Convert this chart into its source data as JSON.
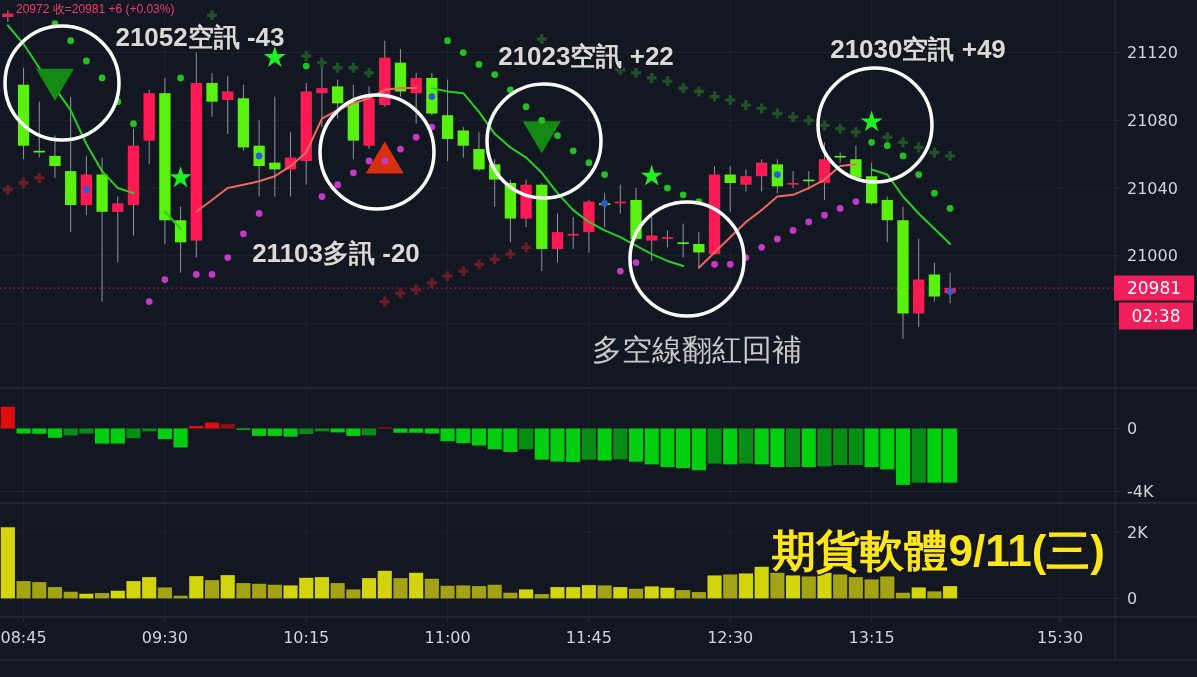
{
  "chart_data": [
    {
      "type": "candlestick",
      "categories": [
        null,
        null,
        null,
        null,
        null,
        null,
        null,
        null,
        null,
        null,
        null,
        null,
        null,
        null,
        null,
        null,
        null,
        null,
        null,
        null,
        null,
        null,
        null,
        null,
        null,
        null,
        null,
        null,
        null,
        null,
        null,
        null,
        null,
        null,
        null,
        null,
        null,
        null,
        null,
        null,
        null,
        null,
        null,
        null,
        null,
        null,
        null,
        null,
        null,
        null,
        null,
        null,
        null,
        null,
        null,
        null,
        null,
        null,
        null,
        null,
        null,
        null,
        null,
        null,
        null,
        null,
        null,
        null,
        null,
        null,
        null
      ],
      "ohlc": [
        [
          21141,
          21145,
          21138,
          21143
        ],
        [
          21101,
          21111,
          21057,
          21065
        ],
        [
          21062,
          21091,
          21058,
          21061
        ],
        [
          21059,
          21071,
          21046,
          21053
        ],
        [
          21050,
          21094,
          21014,
          21030
        ],
        [
          21030,
          21059,
          21024,
          21048
        ],
        [
          21048,
          21058,
          20973,
          21026
        ],
        [
          21026,
          21035,
          20996,
          21031
        ],
        [
          21030,
          21075,
          21012,
          21065
        ],
        [
          21068,
          21098,
          21054,
          21096
        ],
        [
          21096,
          21105,
          21007,
          21021
        ],
        [
          21021,
          21029,
          20990,
          21008
        ],
        [
          21009,
          21120,
          20999,
          21102
        ],
        [
          21102,
          21108,
          21082,
          21091
        ],
        [
          21092,
          21106,
          21072,
          21097
        ],
        [
          21093,
          21101,
          21062,
          21064
        ],
        [
          21065,
          21080,
          21035,
          21053
        ],
        [
          21055,
          21094,
          21035,
          21051
        ],
        [
          21051,
          21073,
          21035,
          21058
        ],
        [
          21056,
          21102,
          21042,
          21097
        ],
        [
          21096,
          21112,
          21076,
          21099
        ],
        [
          21100,
          21104,
          21081,
          21090
        ],
        [
          21091,
          21101,
          21057,
          21068
        ],
        [
          21065,
          21100,
          21063,
          21093
        ],
        [
          21089,
          21127,
          21088,
          21117
        ],
        [
          21114,
          21122,
          21094,
          21097
        ],
        [
          21096,
          21108,
          21078,
          21105
        ],
        [
          21105,
          21108,
          21083,
          21084
        ],
        [
          21083,
          21104,
          21056,
          21069
        ],
        [
          21074,
          21076,
          21058,
          21065
        ],
        [
          21063,
          21073,
          21050,
          21051
        ],
        [
          21054,
          21057,
          21029,
          21045
        ],
        [
          21043,
          21045,
          21008,
          21022
        ],
        [
          21022,
          21045,
          21017,
          21042
        ],
        [
          21042,
          21043,
          20991,
          21004
        ],
        [
          21004,
          21025,
          20996,
          21014
        ],
        [
          21012,
          21023,
          21004,
          21013
        ],
        [
          21014,
          21033,
          21002,
          21032
        ],
        [
          21031,
          21037,
          21017,
          21030
        ],
        [
          21031,
          21042,
          21025,
          21032
        ],
        [
          21033,
          21040,
          21009,
          21010
        ],
        [
          21009,
          21023,
          20997,
          21012
        ],
        [
          21010,
          21015,
          21005,
          21011
        ],
        [
          21008,
          21019,
          20999,
          21007
        ],
        [
          21007,
          21014,
          20993,
          21002
        ],
        [
          21001,
          21053,
          21001,
          21048
        ],
        [
          21048,
          21053,
          21026,
          21043
        ],
        [
          21042,
          21051,
          21038,
          21047
        ],
        [
          21047,
          21057,
          21038,
          21055
        ],
        [
          21054,
          21057,
          21037,
          21041
        ],
        [
          21042,
          21050,
          21040,
          21043
        ],
        [
          21045,
          21050,
          21039,
          21044
        ],
        [
          21043,
          21067,
          21033,
          21057
        ],
        [
          21059,
          21061,
          21055,
          21058
        ],
        [
          21057,
          21065,
          21046,
          21046
        ],
        [
          21047,
          21055,
          21030,
          21031
        ],
        [
          21033,
          21035,
          21008,
          21021
        ],
        [
          21021,
          21029,
          20951,
          20966
        ],
        [
          20966,
          21010,
          20958,
          20986
        ],
        [
          20989,
          20996,
          20973,
          20976
        ],
        [
          20978,
          20990,
          20972,
          20981
        ],
        null,
        null,
        null,
        null,
        null,
        null,
        null,
        null,
        null,
        null
      ],
      "colors": [
        "#ff1a53",
        "#59f20f",
        "#59f20f",
        "#59f20f",
        "#59f20f",
        "#ff1a53",
        "#59f20f",
        "#ff1a53",
        "#ff1a53",
        "#ff1a53",
        "#59f20f",
        "#59f20f",
        "#ff1a53",
        "#59f20f",
        "#ff1a53",
        "#59f20f",
        "#59f20f",
        "#59f20f",
        "#ff1a53",
        "#ff1a53",
        "#ff1a53",
        "#59f20f",
        "#59f20f",
        "#ff1a53",
        "#ff1a53",
        "#59f20f",
        "#ff1a53",
        "#59f20f",
        "#59f20f",
        "#59f20f",
        "#59f20f",
        "#59f20f",
        "#59f20f",
        "#ff1a53",
        "#59f20f",
        "#ff1a53",
        "#ff1a53",
        "#ff1a53",
        "#59f20f",
        "#ff1a53",
        "#59f20f",
        "#ff1a53",
        "#ff1a53",
        "#59f20f",
        "#59f20f",
        "#ff1a53",
        "#59f20f",
        "#ff1a53",
        "#ff1a53",
        "#59f20f",
        "#ff1a53",
        "#59f20f",
        "#ff1a53",
        "#59f20f",
        "#59f20f",
        "#59f20f",
        "#59f20f",
        "#59f20f",
        "#ff1a53",
        "#59f20f",
        "#ff1a53",
        null,
        null,
        null,
        null,
        null,
        null,
        null,
        null,
        null,
        null
      ],
      "series": [
        {
          "type": "line",
          "color": "#25cf25",
          "values": [
            21136,
            21125,
            21111,
            21099,
            21086,
            21066,
            21050,
            21040,
            21037,
            null,
            21026,
            21016,
            null,
            null,
            null,
            null,
            null,
            null,
            null,
            null,
            null,
            null,
            null,
            null,
            null,
            null,
            null,
            21099,
            21097,
            21096,
            21085,
            21072,
            21064,
            21058,
            21049,
            21037,
            21027,
            21020,
            21015,
            21011,
            21006,
            21001,
            20997,
            20994,
            null,
            null,
            null,
            null,
            null,
            null,
            null,
            null,
            null,
            null,
            null,
            21051,
            21048,
            21035,
            21025,
            21016,
            21007,
            null,
            null,
            null,
            null,
            null,
            null,
            null,
            null,
            null,
            null
          ]
        },
        {
          "type": "line",
          "color": "#ec6a5e",
          "values": [
            null,
            null,
            null,
            null,
            null,
            null,
            null,
            null,
            null,
            null,
            null,
            null,
            21026,
            21033,
            21040,
            21042,
            21044,
            21047,
            21053,
            21061,
            21081,
            21086,
            21090,
            21093,
            21098,
            21099,
            21099,
            null,
            null,
            null,
            null,
            null,
            null,
            null,
            null,
            null,
            null,
            null,
            null,
            null,
            null,
            null,
            null,
            null,
            20993,
            21002,
            21011,
            21020,
            21027,
            21035,
            21036,
            21040,
            21045,
            21053,
            21054,
            null,
            null,
            null,
            null,
            null,
            null,
            null,
            null,
            null,
            null,
            null,
            null,
            null,
            null,
            null,
            null
          ]
        },
        {
          "type": "scatter",
          "marker": "cross",
          "color": "#1f5226",
          "values": [
            null,
            null,
            null,
            null,
            null,
            null,
            null,
            null,
            null,
            null,
            null,
            null,
            null,
            21142,
            null,
            null,
            null,
            null,
            null,
            21118,
            21114,
            21111,
            21111,
            21108,
            null,
            null,
            null,
            null,
            null,
            null,
            null,
            null,
            null,
            null,
            21128,
            null,
            null,
            null,
            null,
            21110,
            21108,
            21105,
            21103,
            21099,
            21097,
            21094,
            21092,
            21089,
            21087,
            21084,
            21082,
            21080,
            21077,
            21075,
            21073,
            null,
            21070,
            21067,
            21064,
            21061,
            21059,
            null,
            null,
            null,
            null,
            null,
            null,
            null,
            null,
            null,
            null
          ]
        },
        {
          "type": "scatter",
          "marker": "cross",
          "color": "#6b1d27",
          "values": [
            21039,
            21043,
            21046,
            null,
            null,
            null,
            null,
            null,
            null,
            null,
            null,
            null,
            null,
            null,
            null,
            null,
            null,
            null,
            null,
            null,
            null,
            null,
            null,
            null,
            20973,
            20978,
            20980,
            20984,
            20988,
            20991,
            20995,
            20998,
            21001,
            21005,
            null,
            null,
            null,
            null,
            null,
            null,
            null,
            null,
            null,
            null,
            null,
            null,
            null,
            null,
            null,
            null,
            null,
            null,
            null,
            null,
            null,
            null,
            null,
            null,
            null,
            null,
            null,
            null,
            null,
            null,
            null,
            null,
            null,
            null,
            null,
            null,
            null
          ]
        },
        {
          "type": "scatter",
          "marker": "triangle",
          "color": "#148a14",
          "values": [
            null,
            null,
            null,
            21101,
            null,
            null,
            null,
            null,
            null,
            null,
            null,
            null,
            null,
            null,
            null,
            null,
            null,
            null,
            null,
            null,
            null,
            null,
            null,
            null,
            null,
            null,
            null,
            null,
            null,
            null,
            null,
            null,
            null,
            null,
            21070,
            null,
            null,
            null,
            null,
            null,
            null,
            null,
            null,
            null,
            null,
            null,
            null,
            null,
            null,
            null,
            null,
            null,
            null,
            null,
            null,
            null,
            null,
            null,
            null,
            null,
            null,
            null,
            null,
            null,
            null,
            null,
            null,
            null,
            null,
            null,
            null
          ]
        },
        {
          "type": "scatter",
          "marker": "triangle",
          "color": "#d8300f",
          "values": [
            null,
            null,
            null,
            null,
            null,
            null,
            null,
            null,
            null,
            null,
            null,
            null,
            null,
            null,
            null,
            null,
            null,
            null,
            null,
            null,
            null,
            null,
            null,
            null,
            21058,
            null,
            null,
            null,
            null,
            null,
            null,
            null,
            null,
            null,
            null,
            null,
            null,
            null,
            null,
            null,
            null,
            null,
            null,
            null,
            null,
            null,
            null,
            null,
            null,
            null,
            null,
            null,
            null,
            null,
            null,
            null,
            null,
            null,
            null,
            null,
            null,
            null,
            null,
            null,
            null,
            null,
            null,
            null,
            null,
            null,
            null
          ]
        },
        {
          "type": "scatter",
          "marker": "star",
          "color": "#1ff01f",
          "values": [
            null,
            null,
            null,
            null,
            null,
            null,
            null,
            null,
            null,
            null,
            null,
            21046,
            null,
            null,
            null,
            null,
            null,
            21117,
            null,
            null,
            null,
            null,
            null,
            null,
            null,
            null,
            null,
            null,
            null,
            null,
            null,
            null,
            null,
            null,
            null,
            null,
            null,
            null,
            null,
            null,
            null,
            21047,
            null,
            null,
            null,
            null,
            null,
            null,
            null,
            null,
            null,
            null,
            null,
            null,
            null,
            21079,
            null,
            null,
            null,
            null,
            null,
            null,
            null,
            null,
            null,
            null,
            null,
            null,
            null,
            null,
            null
          ]
        },
        {
          "type": "scatter",
          "marker": "circle",
          "color": "#1fc21f",
          "values": [
            null,
            null,
            null,
            21137,
            21127,
            21115,
            21105,
            21091,
            21078,
            null,
            null,
            21105,
            null,
            null,
            null,
            null,
            null,
            null,
            null,
            21112,
            null,
            null,
            null,
            null,
            null,
            null,
            null,
            null,
            21127,
            21120,
            21113,
            21107,
            21098,
            21088,
            21080,
            21071,
            21062,
            21055,
            21048,
            null,
            null,
            null,
            21040,
            21036,
            21032,
            null,
            null,
            null,
            null,
            null,
            null,
            null,
            null,
            null,
            null,
            21067,
            21065,
            21059,
            21048,
            21037,
            21028,
            null,
            null,
            null,
            null,
            null,
            null,
            null,
            null,
            null,
            null
          ]
        },
        {
          "type": "scatter",
          "marker": "circle",
          "color": "#c23ac6",
          "values": [
            null,
            null,
            null,
            null,
            null,
            null,
            null,
            null,
            null,
            20973,
            20986,
            null,
            20989,
            20989,
            20999,
            21013,
            21025,
            null,
            null,
            null,
            21035,
            21042,
            21049,
            21056,
            21056,
            21063,
            21070,
            21076,
            null,
            null,
            null,
            null,
            null,
            null,
            null,
            null,
            null,
            null,
            null,
            20991,
            20996,
            null,
            null,
            null,
            null,
            20995,
            20995,
            20999,
            21005,
            21010,
            21015,
            21020,
            21024,
            21028,
            21032,
            null,
            null,
            null,
            null,
            null,
            null,
            null,
            null,
            null,
            null,
            null,
            null,
            null,
            null,
            null,
            null
          ]
        },
        {
          "type": "scatter",
          "marker": "circle",
          "color": "#2a5bd7",
          "values": [
            null,
            null,
            null,
            null,
            null,
            21039,
            null,
            null,
            null,
            null,
            null,
            null,
            null,
            null,
            null,
            null,
            21059,
            null,
            null,
            null,
            null,
            null,
            null,
            null,
            null,
            null,
            null,
            21094,
            null,
            null,
            null,
            null,
            null,
            null,
            null,
            null,
            null,
            null,
            21031,
            null,
            null,
            null,
            null,
            null,
            null,
            null,
            null,
            null,
            null,
            21048,
            null,
            null,
            null,
            null,
            null,
            null,
            null,
            null,
            null,
            null,
            20979,
            null,
            null,
            null,
            null,
            null,
            null,
            null,
            null,
            null,
            null
          ]
        }
      ],
      "ylim": [
        20922,
        21151
      ],
      "yticks": [
        21120,
        21080,
        21040,
        21000,
        {
          "value": 20960,
          "label": null
        }
      ],
      "grid": true,
      "tick_labels": "y",
      "ref_lines": [
        {
          "axis": "y",
          "value": 20981,
          "label": "20981",
          "color": "#f21e5a",
          "line_style": "dotted"
        }
      ],
      "annotations": [
        "20972 收=20981 +6 (+0.03%)",
        "21052空訊 -43",
        "21103多訊 -20",
        "21023空訊 +22",
        "21030空訊 +49",
        "多空線翻紅回補",
        "02:38"
      ]
    },
    {
      "type": "bar",
      "categories": [
        null,
        null,
        null,
        null,
        null,
        null,
        null,
        null,
        null,
        null,
        null,
        null,
        null,
        null,
        null,
        null,
        null,
        null,
        null,
        null,
        null,
        null,
        null,
        null,
        null,
        null,
        null,
        null,
        null,
        null,
        null,
        null,
        null,
        null,
        null,
        null,
        null,
        null,
        null,
        null,
        null,
        null,
        null,
        null,
        null,
        null,
        null,
        null,
        null,
        null,
        null,
        null,
        null,
        null,
        null,
        null,
        null,
        null,
        null,
        null,
        null,
        null,
        null,
        null,
        null,
        null,
        null,
        null,
        null,
        null,
        null
      ],
      "values": [
        1380,
        -320,
        -330,
        -590,
        -440,
        -320,
        -960,
        -960,
        -620,
        -180,
        -670,
        -1200,
        160,
        380,
        290,
        -80,
        -470,
        -470,
        -520,
        -350,
        -180,
        -250,
        -470,
        -440,
        100,
        -270,
        -270,
        -320,
        -810,
        -930,
        -1080,
        -1320,
        -1490,
        -1320,
        -1980,
        -2100,
        -2120,
        -1980,
        -2030,
        -1960,
        -2110,
        -2280,
        -2450,
        -2520,
        -2650,
        -2230,
        -2280,
        -2230,
        -2280,
        -2450,
        -2450,
        -2450,
        -2400,
        -2320,
        -2320,
        -2450,
        -2600,
        -3580,
        -3440,
        -3440,
        -3440,
        null,
        null,
        null,
        null,
        null,
        null,
        null,
        null,
        null,
        null
      ],
      "colors": [
        "#e00d0d",
        "#00cf10",
        "#00cf10",
        "#00cf10",
        "#078c14",
        "#078c14",
        "#00cf10",
        "#00cf10",
        "#078c14",
        "#078c14",
        "#00cf10",
        "#00cf10",
        "#e00d0d",
        "#e00d0d",
        "#8e0d12",
        "#00cf10",
        "#00cf10",
        "#00cf10",
        "#00cf10",
        "#078c14",
        "#078c14",
        "#00cf10",
        "#00cf10",
        "#078c14",
        "#8e0d12",
        "#00cf10",
        "#00cf10",
        "#00cf10",
        "#00cf10",
        "#00cf10",
        "#00cf10",
        "#00cf10",
        "#00cf10",
        "#078c14",
        "#00cf10",
        "#00cf10",
        "#00cf10",
        "#078c14",
        "#00cf10",
        "#078c14",
        "#00cf10",
        "#00cf10",
        "#00cf10",
        "#00cf10",
        "#00cf10",
        "#078c14",
        "#00cf10",
        "#078c14",
        "#00cf10",
        "#00cf10",
        "#078c14",
        "#00cf10",
        "#078c14",
        "#078c14",
        "#078c14",
        "#00cf10",
        "#00cf10",
        "#00cf10",
        "#078c14",
        "#00cf10",
        "#00cf10",
        null,
        null,
        null,
        null,
        null,
        null,
        null,
        null,
        null,
        null
      ],
      "ylim": [
        -4730,
        2570
      ],
      "yticks": [
        0,
        {
          "value": -4000,
          "label": "-4K"
        }
      ],
      "grid": true,
      "tick_labels": "y"
    },
    {
      "type": "bar",
      "categories": [
        null,
        "08:45",
        null,
        null,
        null,
        null,
        null,
        null,
        null,
        null,
        "09:30",
        null,
        null,
        null,
        null,
        null,
        null,
        null,
        null,
        "10:15",
        null,
        null,
        null,
        null,
        null,
        null,
        null,
        null,
        "11:00",
        null,
        null,
        null,
        null,
        null,
        null,
        null,
        null,
        "11:45",
        null,
        null,
        null,
        null,
        null,
        null,
        null,
        null,
        "12:30",
        null,
        null,
        null,
        null,
        null,
        null,
        null,
        null,
        "13:15",
        null,
        null,
        null,
        null,
        null,
        null,
        null,
        null,
        null,
        null,
        null,
        "15:30",
        null,
        null,
        null
      ],
      "values": [
        2140,
        520,
        490,
        340,
        200,
        140,
        160,
        230,
        520,
        640,
        330,
        80,
        670,
        550,
        700,
        460,
        440,
        410,
        390,
        620,
        640,
        460,
        270,
        610,
        830,
        610,
        770,
        590,
        380,
        390,
        370,
        410,
        170,
        270,
        130,
        340,
        340,
        400,
        390,
        340,
        290,
        360,
        320,
        250,
        190,
        690,
        720,
        750,
        950,
        770,
        690,
        660,
        770,
        720,
        640,
        570,
        660,
        170,
        330,
        210,
        370,
        null,
        null,
        null,
        null,
        null,
        null,
        null,
        null,
        null,
        null
      ],
      "colors": [
        "#d4d40c",
        "#a3a314",
        "#a3a314",
        "#a3a314",
        "#a3a314",
        "#d4d40c",
        "#a3a314",
        "#d4d40c",
        "#d4d40c",
        "#d4d40c",
        "#a3a314",
        "#a3a314",
        "#d4d40c",
        "#a3a314",
        "#d4d40c",
        "#a3a314",
        "#a3a314",
        "#a3a314",
        "#d4d40c",
        "#d4d40c",
        "#d4d40c",
        "#a3a314",
        "#a3a314",
        "#d4d40c",
        "#d4d40c",
        "#a3a314",
        "#d4d40c",
        "#a3a314",
        "#a3a314",
        "#a3a314",
        "#a3a314",
        "#a3a314",
        "#a3a314",
        "#d4d40c",
        "#a3a314",
        "#d4d40c",
        "#d4d40c",
        "#d4d40c",
        "#a3a314",
        "#d4d40c",
        "#a3a314",
        "#d4d40c",
        "#d4d40c",
        "#a3a314",
        "#a3a314",
        "#d4d40c",
        "#a3a314",
        "#d4d40c",
        "#d4d40c",
        "#a3a314",
        "#d4d40c",
        "#a3a314",
        "#d4d40c",
        "#a3a314",
        "#a3a314",
        "#a3a314",
        "#a3a314",
        "#a3a314",
        "#d4d40c",
        "#a3a314",
        "#d4d40c",
        null,
        null,
        null,
        null,
        null,
        null,
        null,
        null,
        null,
        null
      ],
      "ylim": [
        -560,
        2870
      ],
      "yticks": [
        {
          "value": 2000,
          "label": "2K"
        },
        0
      ],
      "grid": true,
      "annotations": [
        "期貨軟體9/11(三)"
      ]
    }
  ]
}
